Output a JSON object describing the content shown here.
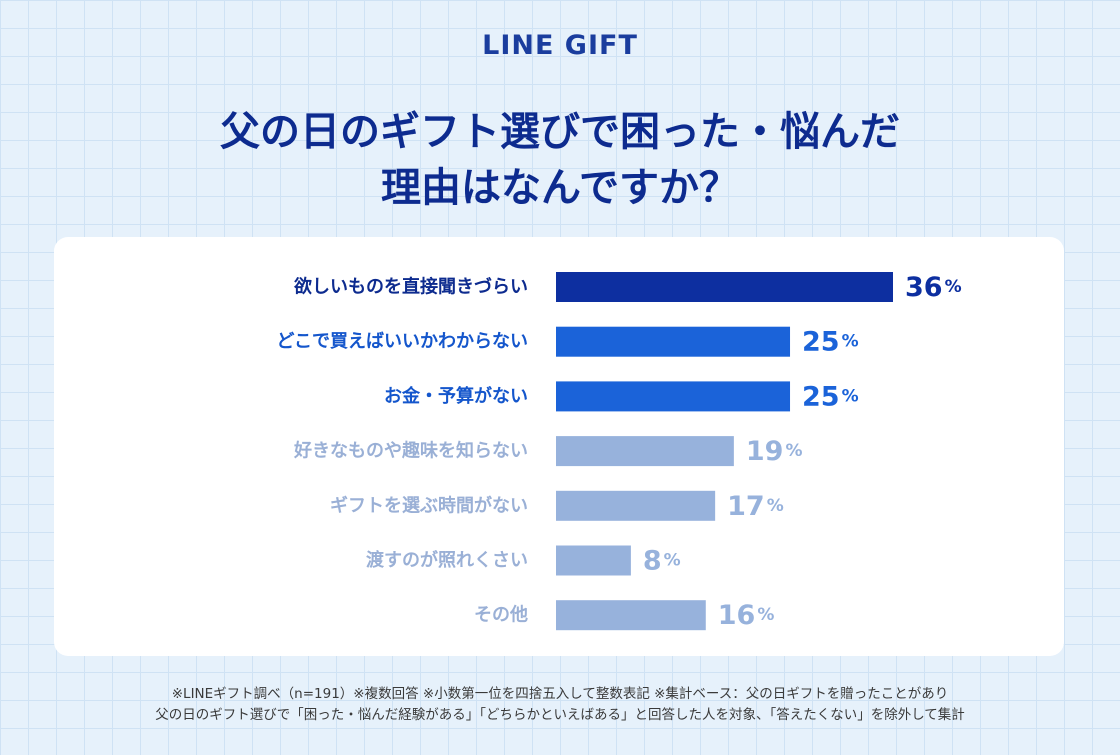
{
  "brand": "LINE GIFT",
  "title": {
    "line1": "父の日のギフト選びで困った・悩んだ",
    "line2": "理由はなんですか？"
  },
  "colors": {
    "top": "#0d2fa0",
    "high": "#1b63d9",
    "low": "#97b2dc",
    "label_top": "#0d2b8f",
    "label_high": "#1456cc",
    "label_low": "#9ab0d6"
  },
  "chart_data": {
    "type": "bar",
    "orientation": "horizontal",
    "title": "父の日のギフト選びで困った・悩んだ理由はなんですか？",
    "unit": "%",
    "categories": [
      "欲しいものを直接聞きづらい",
      "どこで買えばいいかわからない",
      "お金・予算がない",
      "好きなものや趣味を知らない",
      "ギフトを選ぶ時間がない",
      "渡すのが照れくさい",
      "その他"
    ],
    "values": [
      36,
      25,
      25,
      19,
      17,
      8,
      16
    ],
    "tiers": [
      "top",
      "high",
      "high",
      "low",
      "low",
      "low",
      "low"
    ],
    "xlim": [
      0,
      36
    ]
  },
  "notes": {
    "line1": "※LINEギフト調べ（n=191）※複数回答 ※小数第一位を四捨五入して整数表記 ※集計ベース：父の日ギフトを贈ったことがあり",
    "line2": "父の日のギフト選びで「困った・悩んだ経験がある」「どちらかといえばある」と回答した人を対象、「答えたくない」を除外して集計"
  }
}
